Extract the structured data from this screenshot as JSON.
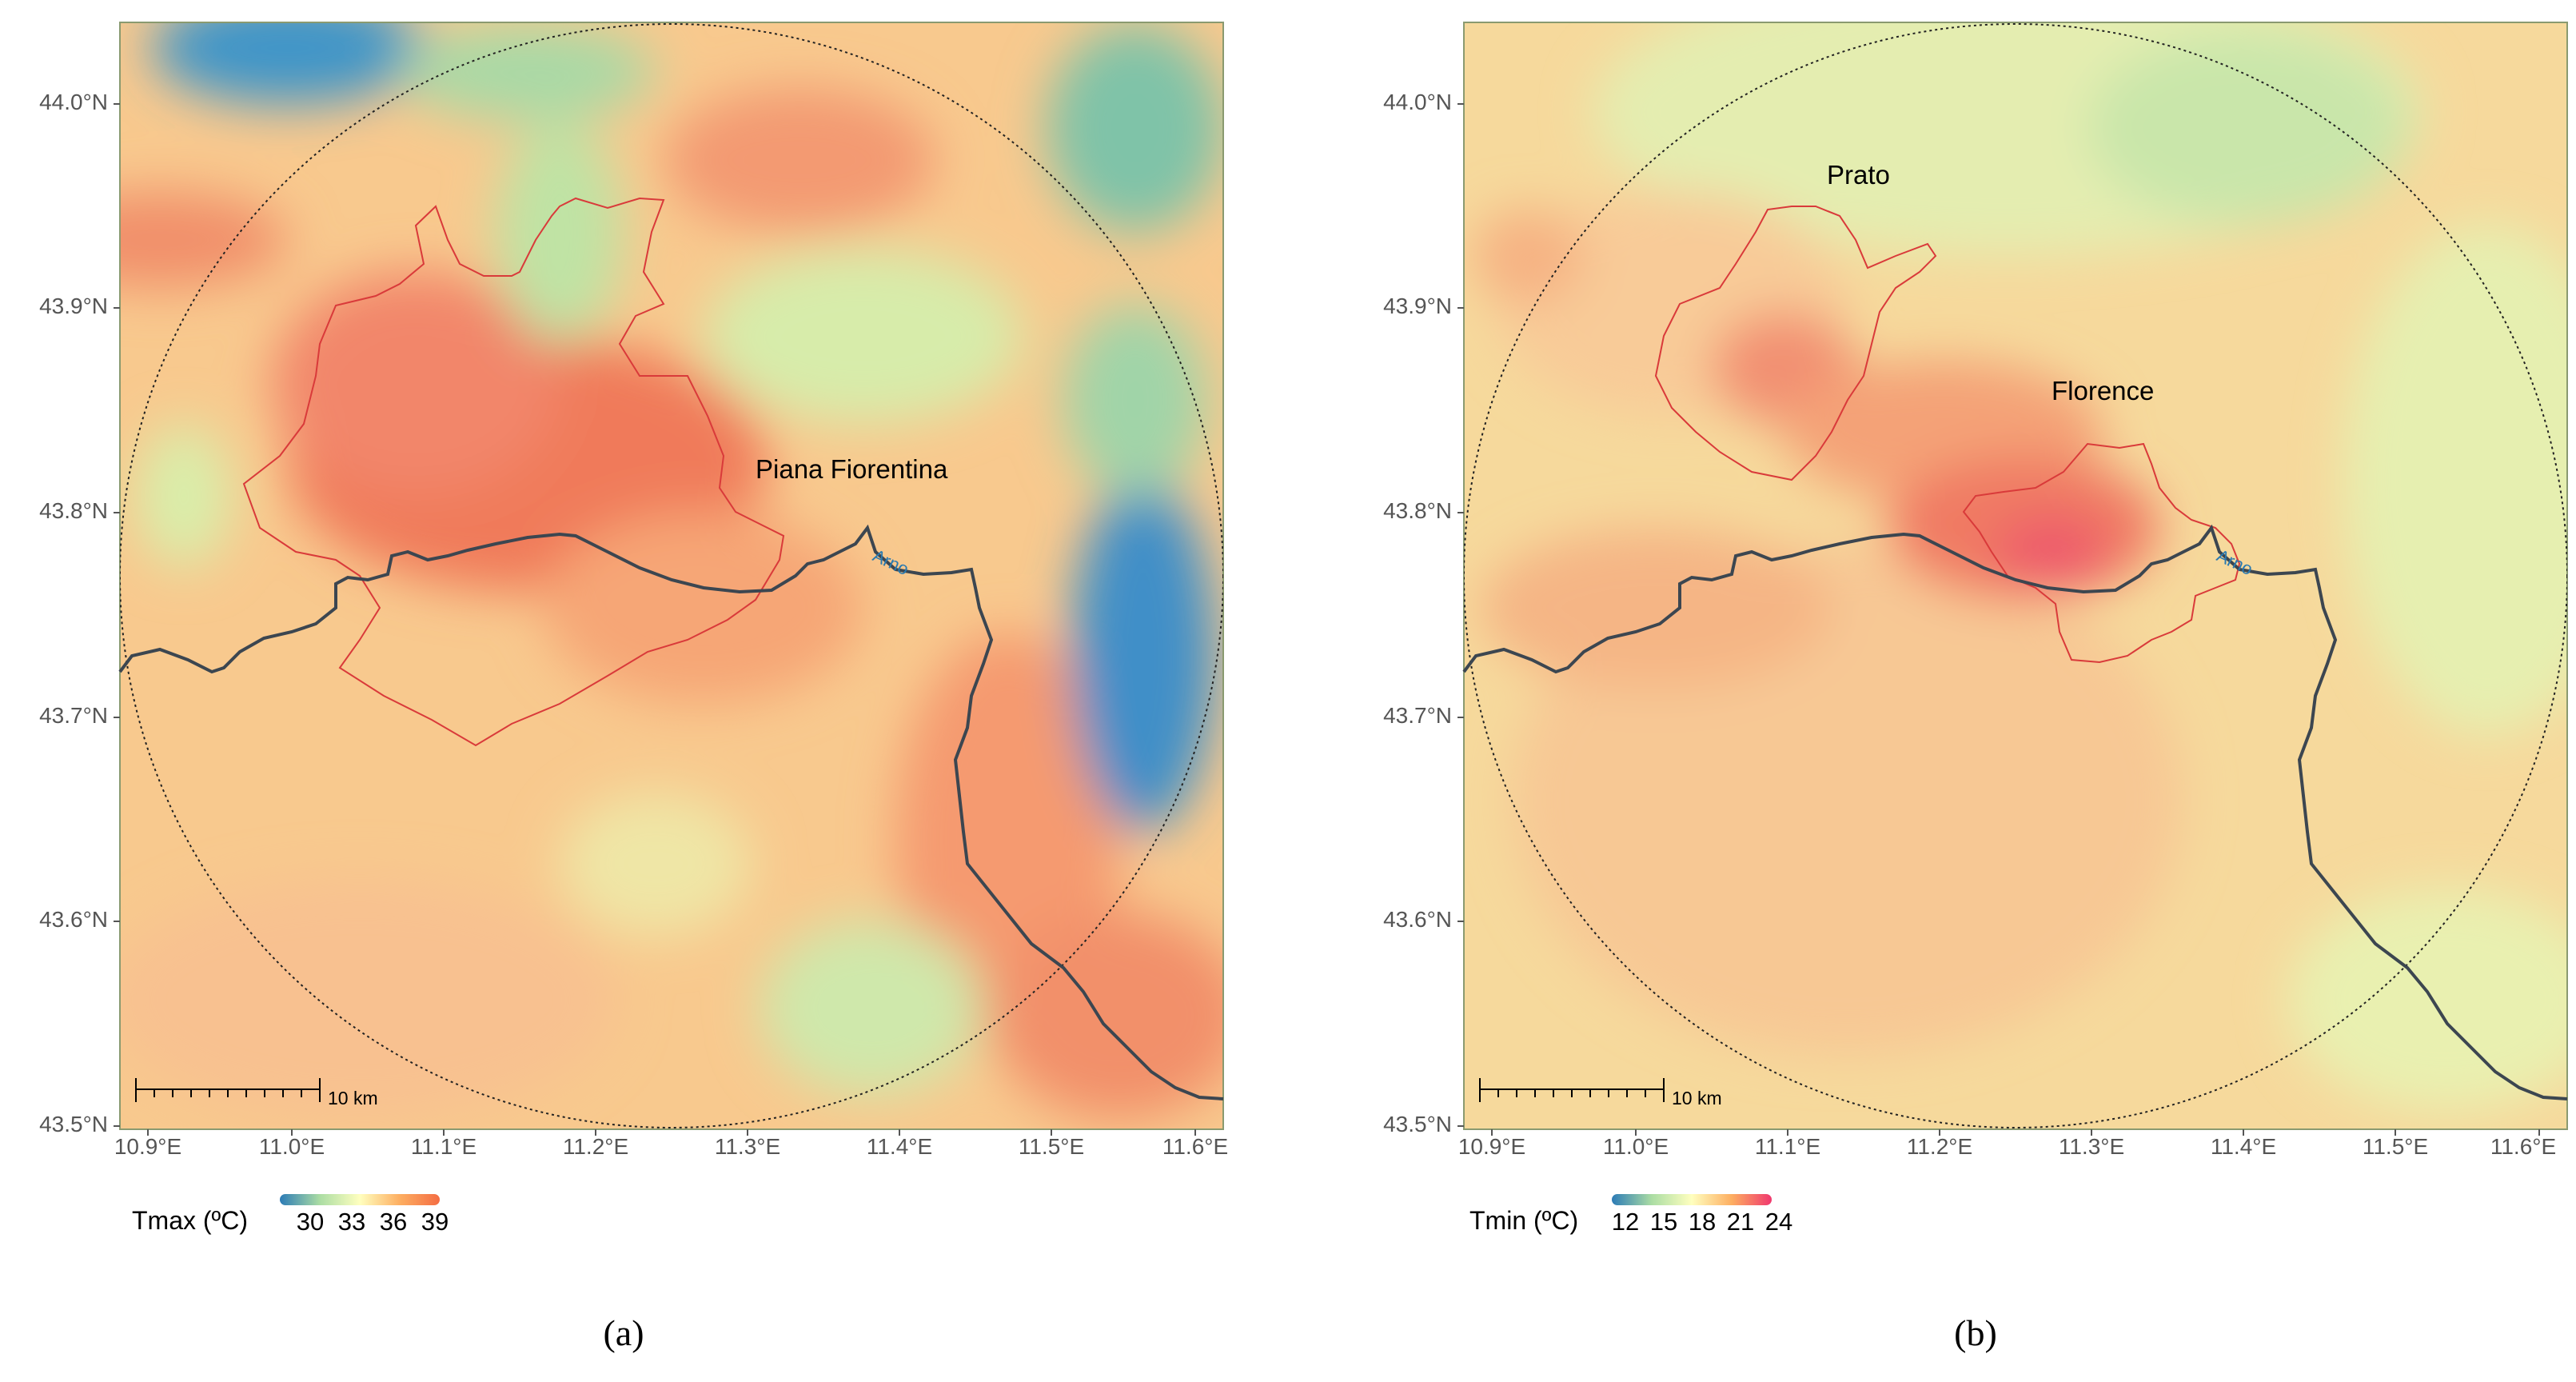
{
  "panels": [
    {
      "id": "a",
      "places": [
        "Piana Fiorentina"
      ],
      "river": "Arno",
      "scale_bar": "10 km",
      "legend": {
        "title": "Tmax (ºC)",
        "ticks": [
          "30",
          "33",
          "36",
          "39"
        ],
        "colors": [
          "#2c7bb6",
          "#abdda4",
          "#ffffbf",
          "#fdae61",
          "#f46d43"
        ]
      },
      "caption": "(a)"
    },
    {
      "id": "b",
      "places": [
        "Prato",
        "Florence"
      ],
      "river": "Arno",
      "scale_bar": "10 km",
      "legend": {
        "title": "Tmin (ºC)",
        "ticks": [
          "12",
          "15",
          "18",
          "21",
          "24"
        ],
        "colors": [
          "#2c7bb6",
          "#abdda4",
          "#ffffbf",
          "#fdae61",
          "#f0386e"
        ]
      },
      "caption": "(b)"
    }
  ],
  "axes": {
    "y_ticks": [
      "44.0°N",
      "43.9°N",
      "43.8°N",
      "43.7°N",
      "43.6°N",
      "43.5°N"
    ],
    "x_ticks": [
      "10.9°E",
      "11.0°E",
      "11.1°E",
      "11.2°E",
      "11.3°E",
      "11.4°E",
      "11.5°E",
      "11.6°E"
    ]
  }
}
